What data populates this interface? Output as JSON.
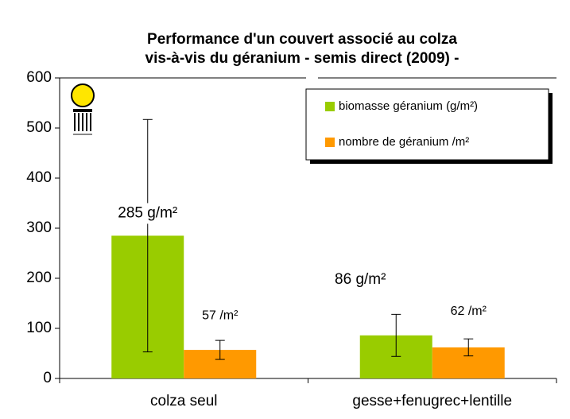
{
  "chart_data": {
    "type": "bar",
    "title": [
      "Performance d'un couvert associé au colza",
      "vis-à-vis du géranium - semis direct (2009) -"
    ],
    "categories": [
      "colza seul",
      "gesse+fenugrec+lentille"
    ],
    "series": [
      {
        "name": "biomasse géranium (g/m²)",
        "color": "#99cc00",
        "values": [
          285,
          86
        ],
        "errors": [
          232,
          42
        ],
        "value_labels": [
          "285 g/m²",
          "86 g/m²"
        ]
      },
      {
        "name": "nombre de géranium /m²",
        "color": "#ff9900",
        "values": [
          57,
          62
        ],
        "errors": [
          19,
          17
        ],
        "value_labels": [
          "57 /m²",
          "62 /m²"
        ]
      }
    ],
    "ylim": [
      0,
      600
    ],
    "yticks": [
      0,
      100,
      200,
      300,
      400,
      500,
      600
    ],
    "grid": false,
    "legend": "top-right"
  }
}
